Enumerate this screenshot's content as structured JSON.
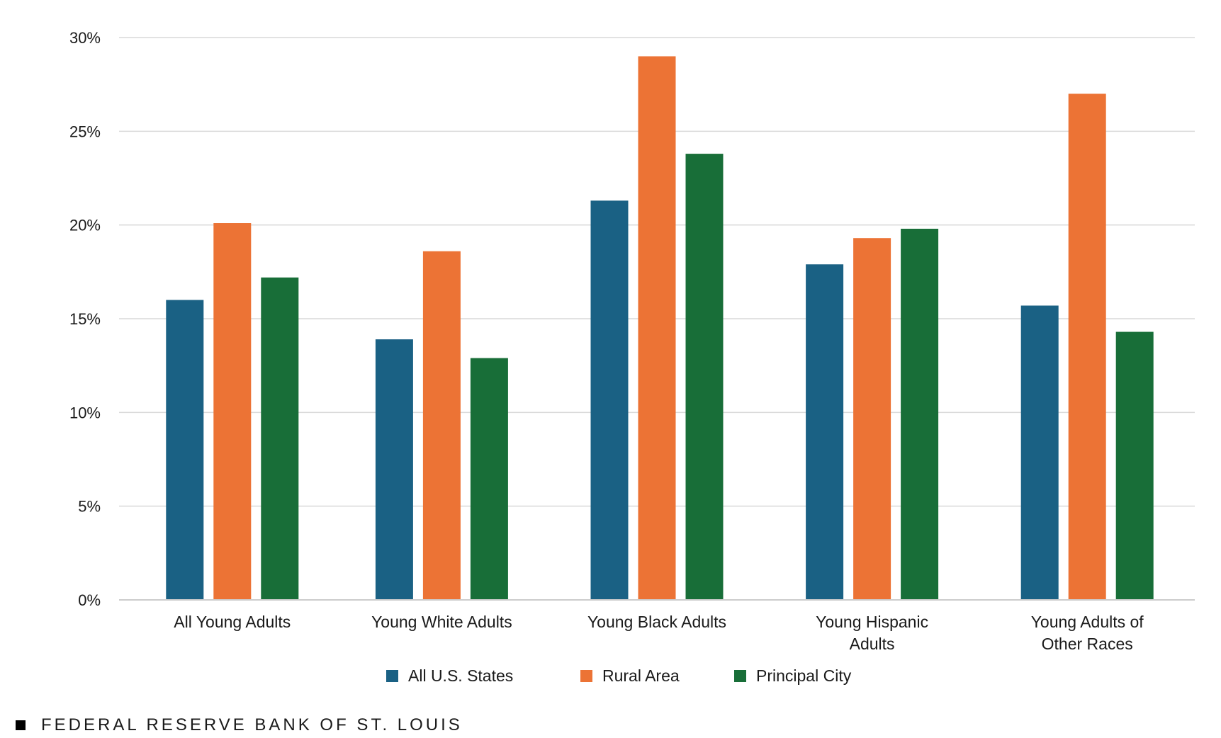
{
  "chart_data": {
    "type": "bar",
    "categories": [
      [
        "All Young Adults"
      ],
      [
        "Young White Adults"
      ],
      [
        "Young Black Adults"
      ],
      [
        "Young Hispanic",
        "Adults"
      ],
      [
        "Young Adults of",
        "Other Races"
      ]
    ],
    "series": [
      {
        "name": "All U.S. States",
        "color": "#1a6184",
        "values": [
          16.0,
          13.9,
          21.3,
          17.9,
          15.7
        ]
      },
      {
        "name": "Rural Area",
        "color": "#ec7335",
        "values": [
          20.1,
          18.6,
          29.0,
          19.3,
          27.0
        ]
      },
      {
        "name": "Principal City",
        "color": "#186e38",
        "values": [
          17.2,
          12.9,
          23.8,
          19.8,
          14.3
        ]
      }
    ],
    "ylim": [
      0,
      30
    ],
    "yticks": [
      0,
      5,
      10,
      15,
      20,
      25,
      30
    ],
    "ytick_labels": [
      "0%",
      "5%",
      "10%",
      "15%",
      "20%",
      "25%",
      "30%"
    ],
    "grid": true,
    "legend_position": "bottom-center"
  },
  "footer": {
    "source": "FEDERAL RESERVE BANK OF ST. LOUIS"
  }
}
